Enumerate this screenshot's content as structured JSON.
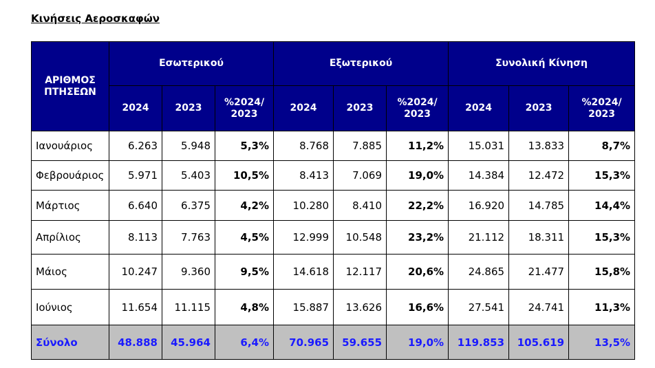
{
  "title": "Κινήσεις Αεροσκαφών",
  "table": {
    "corner": "ΑΡΙΘΜΟΣ\nΠΤΗΣΕΩΝ",
    "groups": [
      {
        "name": "Εσωτερικού",
        "columns": [
          "2024",
          "2023",
          "%2024/\n2023"
        ]
      },
      {
        "name": "Εξωτερικού",
        "columns": [
          "2024",
          "2023",
          "%2024/\n2023"
        ]
      },
      {
        "name": "Συνολική Κίνηση",
        "columns": [
          "2024",
          "2023",
          "%2024/\n2023"
        ]
      }
    ],
    "rows": [
      [
        "Ιανουάριος",
        "6.263",
        "5.948",
        "5,3%",
        "8.768",
        "7.885",
        "11,2%",
        "15.031",
        "13.833",
        "8,7%"
      ],
      [
        "Φεβρουάριος",
        "5.971",
        "5.403",
        "10,5%",
        "8.413",
        "7.069",
        "19,0%",
        "14.384",
        "12.472",
        "15,3%"
      ],
      [
        "Μάρτιος",
        "6.640",
        "6.375",
        "4,2%",
        "10.280",
        "8.410",
        "22,2%",
        "16.920",
        "14.785",
        "14,4%"
      ],
      [
        "Απρίλιος",
        "8.113",
        "7.763",
        "4,5%",
        "12.999",
        "10.548",
        "23,2%",
        "21.112",
        "18.311",
        "15,3%"
      ],
      [
        "Μάιος",
        "10.247",
        "9.360",
        "9,5%",
        "14.618",
        "12.117",
        "20,6%",
        "24.865",
        "21.477",
        "15,8%"
      ],
      [
        "Ιούνιος",
        "11.654",
        "11.115",
        "4,8%",
        "15.887",
        "13.626",
        "16,6%",
        "27.541",
        "24.741",
        "11,3%"
      ]
    ],
    "total": [
      "Σύνολο",
      "48.888",
      "45.964",
      "6,4%",
      "70.965",
      "59.655",
      "19,0%",
      "119.853",
      "105.619",
      "13,5%"
    ]
  }
}
